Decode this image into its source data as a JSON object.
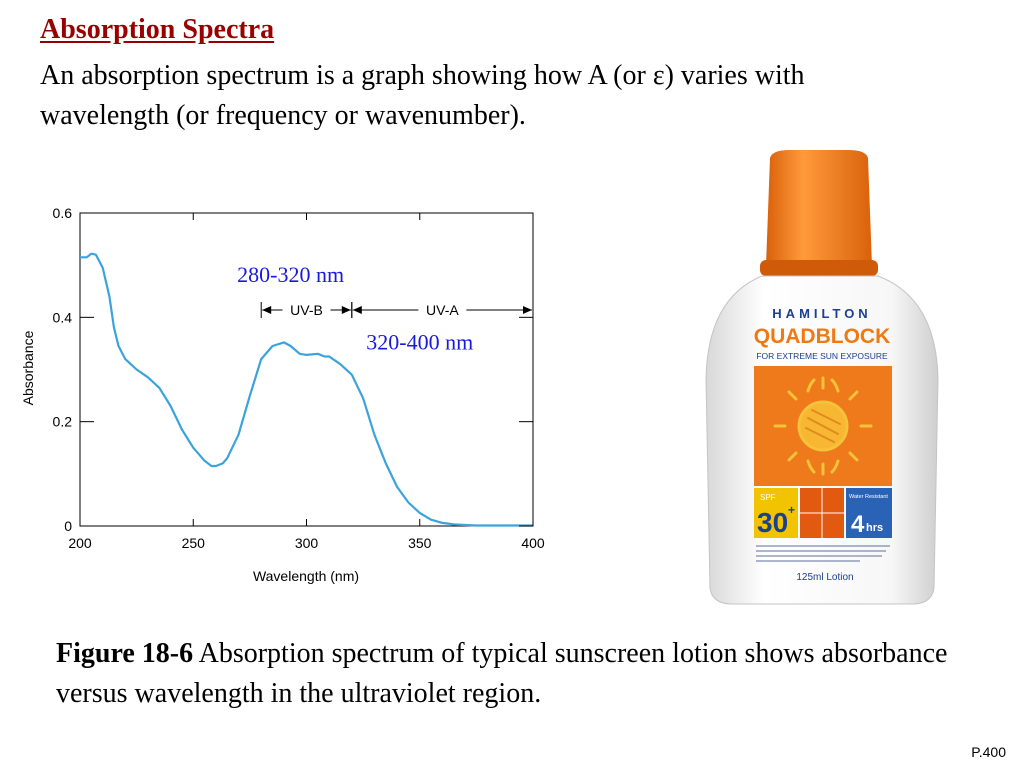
{
  "slide": {
    "title": "Absorption Spectra",
    "intro": "An absorption spectrum is a graph showing how A (or ε) varies with wavelength (or frequency or wavenumber).",
    "caption_label": "Figure 18-6",
    "caption_text": "Absorption spectrum of typical sunscreen lotion shows absorbance versus wavelength in the ultraviolet region.",
    "page_number": "P.400"
  },
  "chart_data": {
    "type": "line",
    "title": "",
    "xlabel": "Wavelength (nm)",
    "ylabel": "Absorbance",
    "xlim": [
      200,
      400
    ],
    "ylim": [
      0,
      0.6
    ],
    "x_ticks": [
      200,
      250,
      300,
      350,
      400
    ],
    "x_tick_labels": [
      "200",
      "250",
      "300",
      "350",
      "400"
    ],
    "y_ticks": [
      0,
      0.2,
      0.4,
      0.6
    ],
    "y_tick_labels": [
      "0",
      "0.2",
      "0.4",
      "0.6"
    ],
    "grid": false,
    "line_color": "#3ba3dc",
    "series": [
      {
        "x": [
          200,
          203,
          205,
          207,
          210,
          213,
          215,
          217,
          220,
          225,
          230,
          235,
          240,
          245,
          250,
          255,
          258,
          260,
          263,
          265,
          270,
          275,
          280,
          285,
          290,
          293,
          297,
          300,
          305,
          308,
          310,
          315,
          320,
          325,
          330,
          335,
          340,
          345,
          350,
          355,
          360,
          365,
          370,
          375,
          380,
          385,
          390,
          395,
          400
        ],
        "y": [
          0.515,
          0.515,
          0.522,
          0.52,
          0.495,
          0.44,
          0.38,
          0.345,
          0.32,
          0.3,
          0.285,
          0.265,
          0.23,
          0.185,
          0.15,
          0.125,
          0.115,
          0.115,
          0.12,
          0.13,
          0.175,
          0.25,
          0.32,
          0.345,
          0.352,
          0.345,
          0.33,
          0.328,
          0.33,
          0.325,
          0.325,
          0.31,
          0.29,
          0.245,
          0.175,
          0.12,
          0.075,
          0.045,
          0.025,
          0.012,
          0.006,
          0.003,
          0.002,
          0.001,
          0.001,
          0.001,
          0.001,
          0.001,
          0.001
        ]
      }
    ],
    "bands": [
      {
        "label": "UV-B",
        "from": 280,
        "to": 320
      },
      {
        "label": "UV-A",
        "from": 320,
        "to": 400
      }
    ],
    "annotations": [
      {
        "text": "280-320 nm",
        "x": 293,
        "y": 0.468
      },
      {
        "text": "320-400 nm",
        "x": 350,
        "y": 0.338
      }
    ]
  },
  "bottle": {
    "brand": "HAMILTON",
    "product": "QUADBLOCK",
    "tagline": "FOR EXTREME SUN EXPOSURE",
    "spf_label": "SPF",
    "spf_value": "30",
    "spf_plus": "+",
    "water_label": "Water Resistant",
    "hours_value": "4",
    "hours_unit": "hrs",
    "volume": "125ml Lotion",
    "cap_color": "#f07a12",
    "panel_color": "#ee7a1c",
    "brand_color": "#1c3f8f",
    "sun_color": "#f5c23a"
  }
}
